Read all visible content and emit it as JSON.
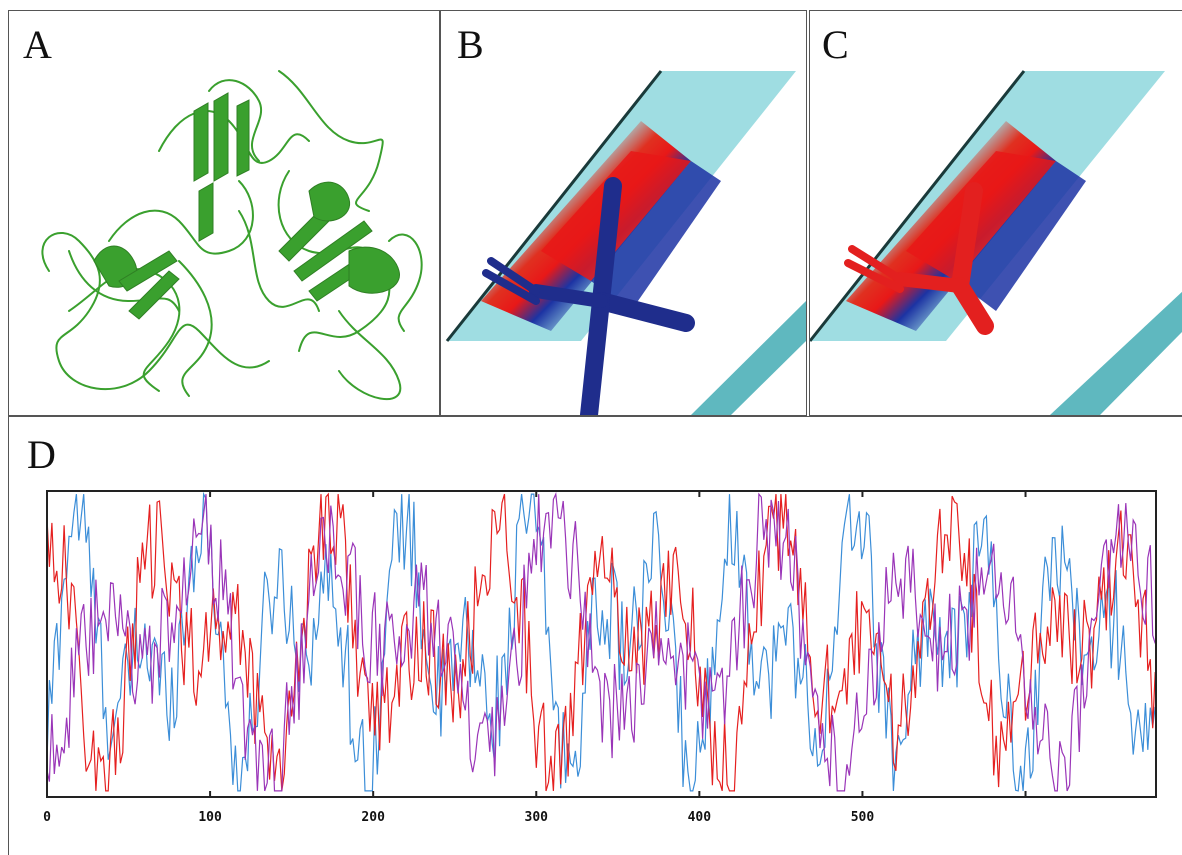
{
  "panels": {
    "a": {
      "label": "A"
    },
    "b": {
      "label": "B"
    },
    "c": {
      "label": "C"
    },
    "d": {
      "label": "D"
    }
  },
  "colors": {
    "protein_green": "#3aa02e",
    "strand_cyan": "#9fdde2",
    "residue_blue": "#1f2d8c",
    "residue_red": "#e3201f",
    "series_blue": "#3c8ed8",
    "series_red": "#e52020",
    "series_purple": "#9a35b8"
  },
  "chart_data": {
    "type": "line",
    "x_ticks": [
      0,
      100,
      200,
      300,
      400,
      500
    ],
    "x_tick_marks": [
      0,
      100,
      200,
      300,
      400,
      500,
      600
    ],
    "xlim": [
      0,
      680
    ],
    "ylim": [
      0,
      1
    ],
    "grid": false,
    "series": [
      {
        "color": "#3c8ed8"
      },
      {
        "color": "#e52020"
      },
      {
        "color": "#9a35b8"
      }
    ]
  }
}
